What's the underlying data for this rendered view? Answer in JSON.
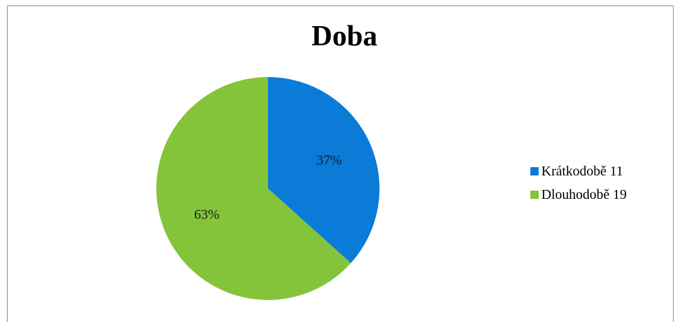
{
  "chart_data": {
    "type": "pie",
    "title": "Doba",
    "categories": [
      "Krátkodobě 11",
      "Dlouhodobě 19"
    ],
    "values": [
      11,
      19
    ],
    "data_labels": [
      "37%",
      "63%"
    ],
    "colors": [
      "#0a7bd7",
      "#84c43a"
    ],
    "legend_position": "right"
  }
}
